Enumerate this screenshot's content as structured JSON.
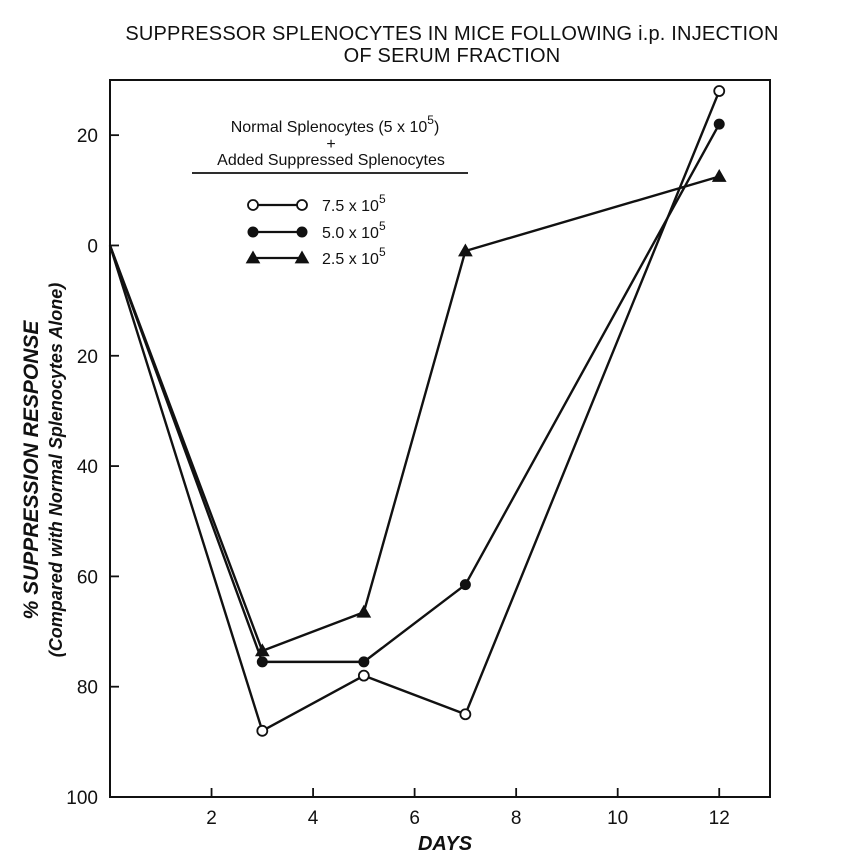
{
  "chart_data": {
    "type": "line",
    "title_lines": [
      "SUPPRESSOR SPLENOCYTES IN MICE FOLLOWING i.p. INJECTION",
      "OF SERUM FRACTION"
    ],
    "xlabel": "DAYS",
    "ylabel_lines": [
      "% SUPPRESSION RESPONSE",
      "(Compared with Normal Splenocytes Alone)"
    ],
    "xlim": [
      0,
      13
    ],
    "ylim_top": 30,
    "ylim_bottom": 100,
    "x_ticks": [
      2,
      4,
      6,
      8,
      10,
      12
    ],
    "y_ticks": [
      {
        "value": 20,
        "label": "20"
      },
      {
        "value": 0,
        "label": "0"
      },
      {
        "value": -20,
        "label": "20"
      },
      {
        "value": -40,
        "label": "40"
      },
      {
        "value": -60,
        "label": "60"
      },
      {
        "value": -80,
        "label": "80"
      },
      {
        "value": -100,
        "label": "100"
      }
    ],
    "legend": {
      "header_line1": "Normal Splenocytes (5 x 10",
      "header_line1_exp": "5",
      "header_line1_end": ")",
      "header_plus": "+",
      "header_line2": "Added Suppressed Splenocytes",
      "placement": "top-left"
    },
    "x": [
      0,
      3,
      5,
      7,
      12
    ],
    "series": [
      {
        "name": "7.5 x 10",
        "exp": "5",
        "marker": "open-circle",
        "values": [
          0,
          -88,
          -78,
          -85,
          28
        ]
      },
      {
        "name": "5.0 x 10",
        "exp": "5",
        "marker": "filled-circle",
        "values": [
          0,
          -75.5,
          -75.5,
          -61.5,
          22
        ]
      },
      {
        "name": "2.5 x 10",
        "exp": "5",
        "marker": "filled-triangle",
        "values": [
          0,
          -73.5,
          -66.5,
          -1,
          12.5
        ]
      }
    ]
  }
}
